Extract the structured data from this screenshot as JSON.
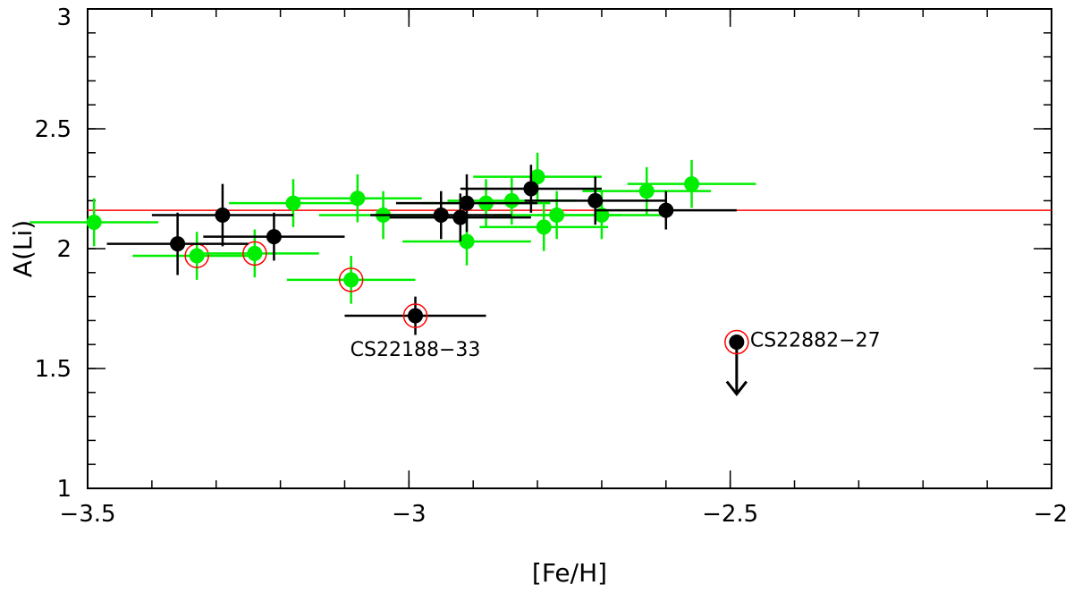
{
  "chart_data": {
    "type": "scatter",
    "title": "",
    "xlabel": "[Fe/H]",
    "ylabel": "A(Li)",
    "xlim": [
      -3.5,
      -2
    ],
    "ylim": [
      1,
      3
    ],
    "xticks": [
      -3.5,
      -3,
      -2.5,
      -2
    ],
    "xtick_labels": [
      "−3.5",
      "−3",
      "−2.5",
      "−2"
    ],
    "yticks": [
      1,
      1.5,
      2,
      2.5,
      3
    ],
    "ytick_labels": [
      "1",
      "1.5",
      "2",
      "2.5",
      "3"
    ],
    "x_minor_step": 0.1,
    "y_minor_step": 0.1,
    "grid": false,
    "reference_line": {
      "y": 2.16,
      "color": "#ff0000"
    },
    "series": [
      {
        "color": "#00ee00",
        "points": [
          {
            "x": -3.49,
            "y": 2.11,
            "xerr": 0.1,
            "yerr": 0.1
          },
          {
            "x": -3.33,
            "y": 1.97,
            "xerr": 0.1,
            "yerr": 0.1,
            "circled": true
          },
          {
            "x": -3.24,
            "y": 1.98,
            "xerr": 0.1,
            "yerr": 0.1,
            "circled": true
          },
          {
            "x": -3.18,
            "y": 2.19,
            "xerr": 0.1,
            "yerr": 0.1
          },
          {
            "x": -3.09,
            "y": 1.87,
            "xerr": 0.1,
            "yerr": 0.1,
            "circled": true
          },
          {
            "x": -3.08,
            "y": 2.21,
            "xerr": 0.1,
            "yerr": 0.1
          },
          {
            "x": -3.04,
            "y": 2.14,
            "xerr": 0.1,
            "yerr": 0.1
          },
          {
            "x": -2.91,
            "y": 2.03,
            "xerr": 0.1,
            "yerr": 0.1
          },
          {
            "x": -2.88,
            "y": 2.19,
            "xerr": 0.1,
            "yerr": 0.1
          },
          {
            "x": -2.84,
            "y": 2.2,
            "xerr": 0.1,
            "yerr": 0.1
          },
          {
            "x": -2.8,
            "y": 2.3,
            "xerr": 0.1,
            "yerr": 0.1
          },
          {
            "x": -2.79,
            "y": 2.09,
            "xerr": 0.1,
            "yerr": 0.1
          },
          {
            "x": -2.77,
            "y": 2.14,
            "xerr": 0.1,
            "yerr": 0.1
          },
          {
            "x": -2.7,
            "y": 2.14,
            "xerr": 0.1,
            "yerr": 0.1
          },
          {
            "x": -2.63,
            "y": 2.24,
            "xerr": 0.1,
            "yerr": 0.1
          },
          {
            "x": -2.56,
            "y": 2.27,
            "xerr": 0.1,
            "yerr": 0.1
          }
        ]
      },
      {
        "color": "#000000",
        "points": [
          {
            "x": -3.36,
            "y": 2.02,
            "xerr": 0.11,
            "yerr": 0.13
          },
          {
            "x": -3.29,
            "y": 2.14,
            "xerr": 0.11,
            "yerr": 0.13
          },
          {
            "x": -3.21,
            "y": 2.05,
            "xerr": 0.11,
            "yerr": 0.1
          },
          {
            "x": -2.99,
            "y": 1.72,
            "xerr": 0.11,
            "yerr": 0.08,
            "circled": true,
            "label": "CS22188−33"
          },
          {
            "x": -2.95,
            "y": 2.14,
            "xerr": 0.11,
            "yerr": 0.1
          },
          {
            "x": -2.92,
            "y": 2.13,
            "xerr": 0.11,
            "yerr": 0.1
          },
          {
            "x": -2.91,
            "y": 2.19,
            "xerr": 0.11,
            "yerr": 0.12
          },
          {
            "x": -2.81,
            "y": 2.25,
            "xerr": 0.11,
            "yerr": 0.1
          },
          {
            "x": -2.71,
            "y": 2.2,
            "xerr": 0.11,
            "yerr": 0.1
          },
          {
            "x": -2.6,
            "y": 2.16,
            "xerr": 0.11,
            "yerr": 0.08
          },
          {
            "x": -2.49,
            "y": 1.61,
            "circled": true,
            "upper_limit": true,
            "label": "CS22882−27"
          }
        ]
      }
    ]
  }
}
